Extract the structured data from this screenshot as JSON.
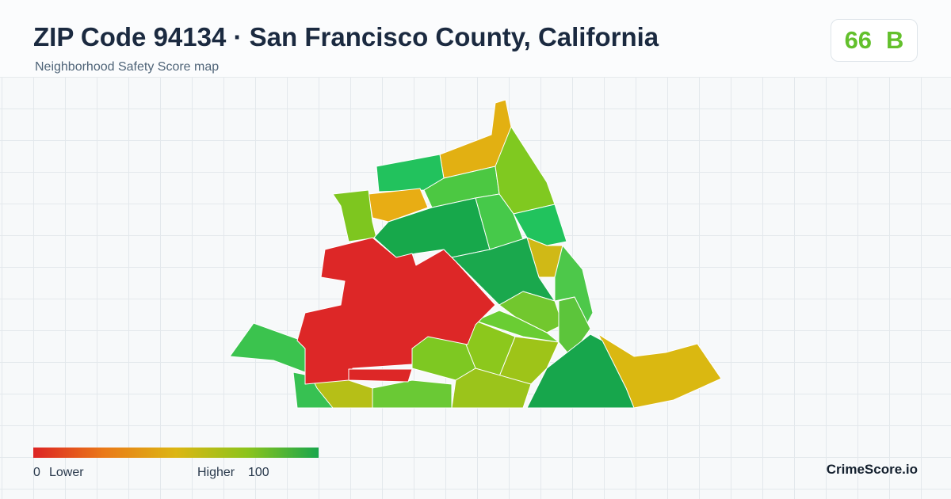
{
  "header": {
    "title": "ZIP Code 94134 · San Francisco County, California",
    "subtitle": "Neighborhood Safety Score map"
  },
  "score": {
    "value": 66,
    "grade": "B"
  },
  "legend": {
    "min": 0,
    "min_label": "Lower",
    "max_label": "Higher",
    "max": 100
  },
  "brand": "CrimeScore.io"
}
